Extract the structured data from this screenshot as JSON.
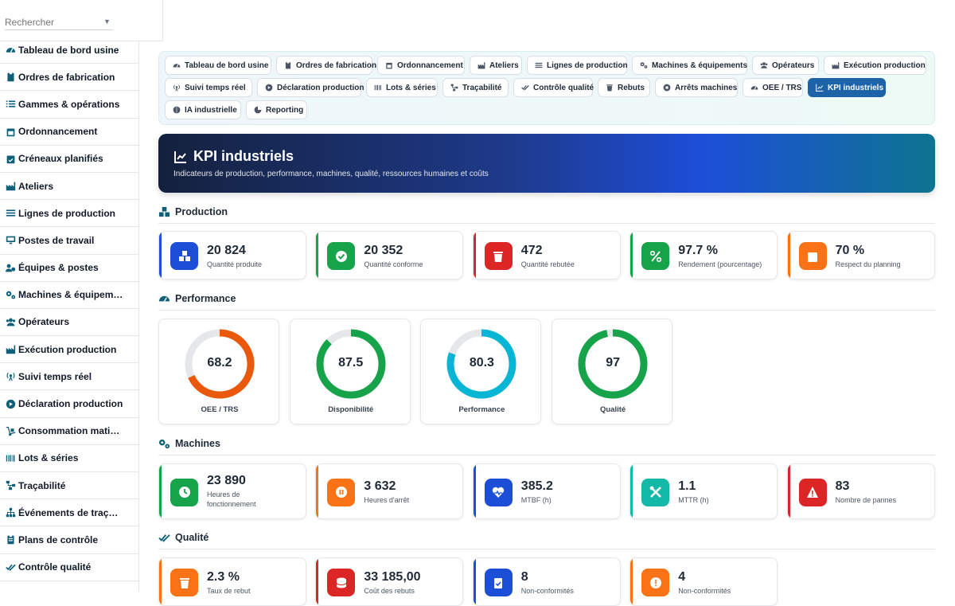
{
  "search": {
    "placeholder": "Rechercher"
  },
  "sidebar": {
    "items": [
      {
        "label": "Tableau de bord usine",
        "icon": "gauge-icon"
      },
      {
        "label": "Ordres de fabrication",
        "icon": "clipboard-icon"
      },
      {
        "label": "Gammes & opérations",
        "icon": "list-icon"
      },
      {
        "label": "Ordonnancement",
        "icon": "calendar-icon"
      },
      {
        "label": "Créneaux planifiés",
        "icon": "calendar-check-icon"
      },
      {
        "label": "Ateliers",
        "icon": "industry-icon"
      },
      {
        "label": "Lignes de production",
        "icon": "lines-icon"
      },
      {
        "label": "Postes de travail",
        "icon": "desktop-icon"
      },
      {
        "label": "Équipes & postes",
        "icon": "users-gear-icon"
      },
      {
        "label": "Machines & équipem…",
        "icon": "gears-icon"
      },
      {
        "label": "Opérateurs",
        "icon": "users-icon"
      },
      {
        "label": "Exécution production",
        "icon": "industry-icon"
      },
      {
        "label": "Suivi temps réel",
        "icon": "broadcast-icon"
      },
      {
        "label": "Déclaration production",
        "icon": "play-circle-icon"
      },
      {
        "label": "Consommation mati…",
        "icon": "dolly-icon"
      },
      {
        "label": "Lots & séries",
        "icon": "barcode-icon"
      },
      {
        "label": "Traçabilité",
        "icon": "diagram-icon"
      },
      {
        "label": "Événements de traç…",
        "icon": "sitemap-icon"
      },
      {
        "label": "Plans de contrôle",
        "icon": "clipboard-list-icon"
      },
      {
        "label": "Contrôle qualité",
        "icon": "check-double-icon"
      }
    ]
  },
  "tabs": [
    {
      "label": "Tableau de bord usine",
      "icon": "gauge-icon"
    },
    {
      "label": "Ordres de fabrication",
      "icon": "clipboard-icon"
    },
    {
      "label": "Ordonnancement",
      "icon": "calendar-icon"
    },
    {
      "label": "Ateliers",
      "icon": "industry-icon"
    },
    {
      "label": "Lignes de production",
      "icon": "lines-icon"
    },
    {
      "label": "Machines & équipements",
      "icon": "gears-icon"
    },
    {
      "label": "Opérateurs",
      "icon": "users-icon"
    },
    {
      "label": "Exécution production",
      "icon": "industry-icon"
    },
    {
      "label": "Suivi temps réel",
      "icon": "broadcast-icon"
    },
    {
      "label": "Déclaration production",
      "icon": "play-circle-icon"
    },
    {
      "label": "Lots & séries",
      "icon": "barcode-icon"
    },
    {
      "label": "Traçabilité",
      "icon": "diagram-icon"
    },
    {
      "label": "Contrôle qualité",
      "icon": "check-double-icon"
    },
    {
      "label": "Rebuts",
      "icon": "trash-icon"
    },
    {
      "label": "Arrêts machines",
      "icon": "stop-circle-icon"
    },
    {
      "label": "OEE / TRS",
      "icon": "gauge-icon"
    },
    {
      "label": "KPI industriels",
      "icon": "chart-line-icon",
      "active": true
    },
    {
      "label": "IA industrielle",
      "icon": "brain-icon"
    },
    {
      "label": "Reporting",
      "icon": "pie-icon"
    }
  ],
  "hero": {
    "title": "KPI industriels",
    "subtitle": "Indicateurs de production, performance, machines, qualité, ressources humaines et coûts"
  },
  "sections": {
    "production": "Production",
    "performance": "Performance",
    "machines": "Machines",
    "qualite": "Qualité"
  },
  "production_cards": [
    {
      "value": "20 824",
      "label": "Quantité produite",
      "color": "#1d4ed8",
      "icon": "boxes-icon"
    },
    {
      "value": "20 352",
      "label": "Quantité conforme",
      "color": "#16a34a",
      "icon": "check-circle-icon"
    },
    {
      "value": "472",
      "label": "Quantité rebutée",
      "color": "#dc2626",
      "icon": "trash-icon"
    },
    {
      "value": "97.7 %",
      "label": "Rendement (pourcentage)",
      "color": "#16a34a",
      "icon": "percent-icon"
    },
    {
      "value": "70 %",
      "label": "Respect du planning",
      "color": "#f97316",
      "icon": "calendar-check-icon"
    }
  ],
  "gauges": [
    {
      "value": "68.2",
      "percent": 68.2,
      "label": "OEE / TRS",
      "color": "#ea580c"
    },
    {
      "value": "87.5",
      "percent": 87.5,
      "label": "Disponibilité",
      "color": "#16a34a"
    },
    {
      "value": "80.3",
      "percent": 80.3,
      "label": "Performance",
      "color": "#06b6d4"
    },
    {
      "value": "97",
      "percent": 97,
      "label": "Qualité",
      "color": "#16a34a"
    }
  ],
  "machine_cards": [
    {
      "value": "23 890",
      "label": "Heures de fonctionnement",
      "color": "#16a34a",
      "icon": "clock-icon"
    },
    {
      "value": "3 632",
      "label": "Heures d'arrêt",
      "color": "#f97316",
      "icon": "pause-icon"
    },
    {
      "value": "385.2",
      "label": "MTBF (h)",
      "color": "#1d4ed8",
      "icon": "heartbeat-icon"
    },
    {
      "value": "1.1",
      "label": "MTTR (h)",
      "color": "#14b8a6",
      "icon": "tools-icon"
    },
    {
      "value": "83",
      "label": "Nombre de pannes",
      "color": "#dc2626",
      "icon": "warning-icon"
    }
  ],
  "quality_cards": [
    {
      "value": "2.3 %",
      "label": "Taux de rebut",
      "color": "#f97316",
      "icon": "trash-icon"
    },
    {
      "value": "33 185,00",
      "label": "Coût des rebuts",
      "color": "#dc2626",
      "icon": "coins-icon"
    },
    {
      "value": "8",
      "label": "Non-conformités",
      "color": "#1d4ed8",
      "icon": "clipboard-check-icon"
    },
    {
      "value": "4",
      "label": "Non-conformités",
      "color": "#f97316",
      "icon": "alert-circle-icon"
    }
  ]
}
